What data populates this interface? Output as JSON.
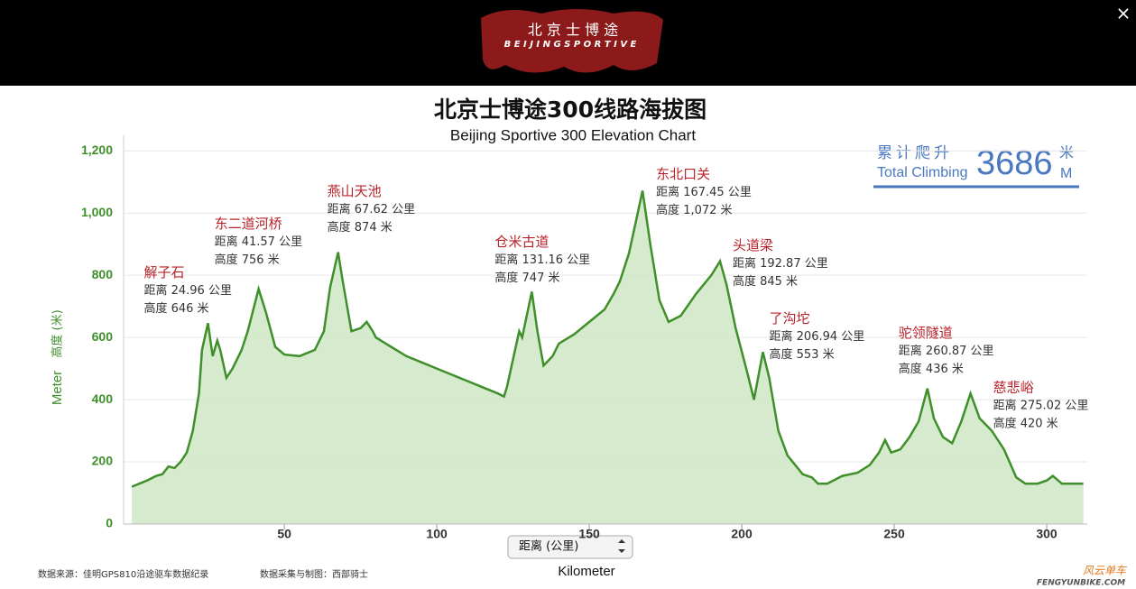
{
  "header": {
    "logo_cn": "北 京 士 博 途",
    "logo_en": "B E I J I N G   S P O R T I V E",
    "close": "×"
  },
  "chart_data": {
    "type": "area",
    "title": "北京士博途300线路海拔图",
    "subtitle": "Beijing Sportive 300 Elevation Chart",
    "y_label_cn": "高度 (米)",
    "y_label": "Meter",
    "x_label": "Kilometer",
    "x_selector": "距离 (公里)",
    "color": "#3f8f2b",
    "fill": "#cfe6c4",
    "x": [
      0,
      5,
      8,
      10,
      12,
      14,
      16,
      18,
      20,
      22,
      23,
      24.96,
      26.5,
      28,
      29,
      31,
      33,
      36,
      38,
      41.57,
      44,
      47,
      50,
      55,
      60,
      63,
      65,
      67.62,
      69,
      72,
      75,
      77,
      79,
      80,
      85,
      90,
      95,
      100,
      105,
      110,
      115,
      120,
      122,
      123,
      127,
      128,
      131.16,
      133,
      135,
      138,
      140,
      145,
      150,
      155,
      158,
      160,
      163,
      165,
      167.45,
      170,
      173,
      176,
      180,
      185,
      190,
      192.87,
      195,
      198,
      202,
      204,
      206.94,
      209,
      212,
      215,
      220,
      223,
      225,
      228,
      233,
      238,
      242,
      245,
      247,
      249,
      252,
      255,
      258,
      260.87,
      263,
      266,
      269,
      272,
      275.02,
      278,
      282,
      286,
      290,
      293,
      297,
      300,
      302,
      305,
      308,
      312
    ],
    "values": [
      120,
      140,
      155,
      160,
      185,
      180,
      200,
      230,
      300,
      420,
      560,
      646,
      540,
      590,
      560,
      470,
      500,
      560,
      620,
      756,
      680,
      570,
      545,
      540,
      560,
      620,
      760,
      874,
      790,
      620,
      630,
      650,
      620,
      600,
      570,
      540,
      520,
      500,
      480,
      460,
      440,
      420,
      410,
      440,
      620,
      600,
      747,
      620,
      510,
      540,
      580,
      610,
      650,
      690,
      740,
      780,
      870,
      960,
      1072,
      900,
      720,
      650,
      670,
      740,
      800,
      845,
      770,
      630,
      480,
      400,
      553,
      470,
      300,
      220,
      160,
      150,
      130,
      130,
      155,
      165,
      190,
      230,
      270,
      230,
      240,
      280,
      330,
      436,
      340,
      280,
      260,
      330,
      420,
      340,
      300,
      240,
      150,
      130,
      130,
      140,
      155,
      130,
      130,
      130
    ],
    "xlim": [
      -2.7,
      313.3
    ],
    "ylim": [
      0,
      1250
    ],
    "xticks": [
      50,
      100,
      150,
      200,
      250,
      300
    ],
    "yticks": [
      0,
      200,
      400,
      600,
      800,
      {
        "value": 1000,
        "label": "1,000"
      },
      {
        "value": 1200,
        "label": "1,200"
      }
    ],
    "grid": true,
    "annotations": [
      {
        "label": "解子石",
        "x": 24.96,
        "y": 646,
        "lines": [
          "距离 24.96 公里",
          "高度 646 米"
        ]
      },
      {
        "label": "东二道河桥",
        "x": 41.57,
        "y": 756,
        "lines": [
          "距离 41.57 公里",
          "高度 756 米"
        ]
      },
      {
        "label": "燕山天池",
        "x": 67.62,
        "y": 874,
        "lines": [
          "距离 67.62 公里",
          "高度 874 米"
        ]
      },
      {
        "label": "仓米古道",
        "x": 131.16,
        "y": 747,
        "lines": [
          "距离 131.16 公里",
          "高度 747 米"
        ]
      },
      {
        "label": "东北口关",
        "x": 167.45,
        "y": 1072,
        "lines": [
          "距离 167.45 公里",
          "高度 1,072 米"
        ]
      },
      {
        "label": "头道梁",
        "x": 192.87,
        "y": 845,
        "lines": [
          "距离 192.87 公里",
          "高度 845 米"
        ]
      },
      {
        "label": "了沟坨",
        "x": 206.94,
        "y": 553,
        "lines": [
          "距离 206.94 公里",
          "高度 553 米"
        ]
      },
      {
        "label": "驼领隧道",
        "x": 260.87,
        "y": 436,
        "lines": [
          "距离 260.87 公里",
          "高度 436 米"
        ]
      },
      {
        "label": "慈悲峪",
        "x": 275.02,
        "y": 420,
        "lines": [
          "距离 275.02 公里",
          "高度 420 米"
        ]
      }
    ],
    "total_climbing": {
      "cn": "累计爬升",
      "unit_cn": "米",
      "en": "Total Climbing",
      "value": 3686,
      "unit": "M"
    }
  },
  "footer": {
    "source": "数据来源：佳明GPS810沿途驱车数据纪录",
    "author": "数据采集与制图：西部骑士",
    "brand": "风云单车",
    "site": "FENGYUNBIKE.COM"
  }
}
